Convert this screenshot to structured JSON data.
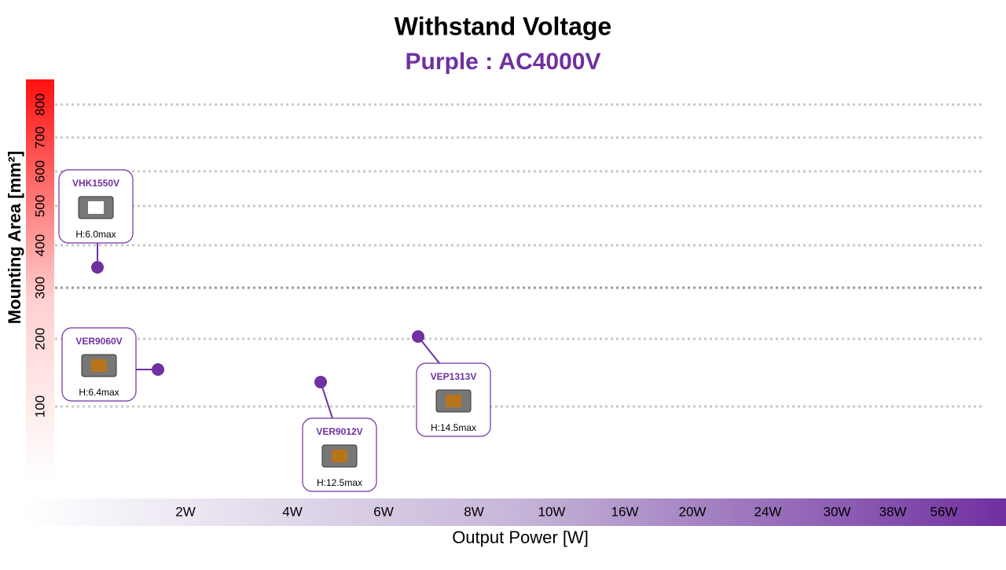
{
  "title": "Withstand Voltage",
  "subtitle": "Purple : AC4000V",
  "y_axis": {
    "label": "Mounting Area [mm²]",
    "tick_labels": [
      "100",
      "200",
      "300",
      "400",
      "500",
      "600",
      "700",
      "800"
    ]
  },
  "x_axis": {
    "label": "Output Power [W]",
    "tick_labels": [
      "2W",
      "4W",
      "6W",
      "8W",
      "10W",
      "16W",
      "20W",
      "24W",
      "30W",
      "38W",
      "56W"
    ]
  },
  "products": [
    {
      "name": "VHK1550V",
      "height": "H:6.0max"
    },
    {
      "name": "VER9060V",
      "height": "H:6.4max"
    },
    {
      "name": "VER9012V",
      "height": "H:12.5max"
    },
    {
      "name": "VEP1313V",
      "height": "H:14.5max"
    }
  ]
}
